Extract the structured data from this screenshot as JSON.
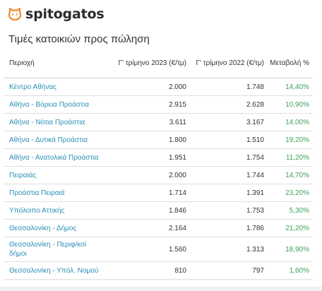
{
  "brand": {
    "name": "spitogatos",
    "icon": "cat-logo-icon",
    "color": "#f28c28"
  },
  "title": "Τιμές κατοικιών προς πώληση",
  "table": {
    "headers": {
      "region": "Περιοχή",
      "q2023": "Γ' τρίμηνο 2023 (€/τμ)",
      "q2022": "Γ' τρίμηνο 2022 (€/τμ)",
      "change": "Μεταβολή %"
    },
    "rows": [
      {
        "region": "Κέντρο Αθήνας",
        "q2023": "2.000",
        "q2022": "1.748",
        "change": "14,40%"
      },
      {
        "region": "Αθήνα - Βόρεια Προάστια",
        "q2023": "2.915",
        "q2022": "2.628",
        "change": "10,90%"
      },
      {
        "region": "Αθήνα - Νότια Προάστια",
        "q2023": "3.611",
        "q2022": "3.167",
        "change": "14,00%"
      },
      {
        "region": "Αθήνα - Δυτικά Προάστια",
        "q2023": "1.800",
        "q2022": "1.510",
        "change": "19,20%"
      },
      {
        "region": "Αθήνα - Ανατολικά Προάστια",
        "q2023": "1.951",
        "q2022": "1.754",
        "change": "11,20%"
      },
      {
        "region": "Πειραιάς",
        "q2023": "2.000",
        "q2022": "1.744",
        "change": "14,70%"
      },
      {
        "region": "Προάστια Πειραιά",
        "q2023": "1.714",
        "q2022": "1.391",
        "change": "23,20%"
      },
      {
        "region": "Υπόλοιπο Αττικής",
        "q2023": "1.846",
        "q2022": "1.753",
        "change": "5,30%"
      },
      {
        "region": "Θεσσαλονίκη - Δήμος",
        "q2023": "2.164",
        "q2022": "1.786",
        "change": "21,20%"
      },
      {
        "region": "Θεσσαλονίκη - Περιφ/κοί δήμοι",
        "q2023": "1.560",
        "q2022": "1.313",
        "change": "18,90%"
      },
      {
        "region": "Θεσσαλονίκη - Υπόλ. Νομού",
        "q2023": "810",
        "q2022": "797",
        "change": "1,60%"
      }
    ]
  },
  "colors": {
    "link": "#2a8fb6",
    "positive": "#3da35a"
  }
}
